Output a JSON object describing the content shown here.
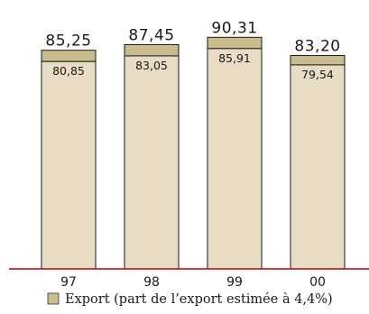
{
  "chart_data": {
    "type": "bar",
    "categories": [
      "97",
      "98",
      "99",
      "00"
    ],
    "series": [
      {
        "name": "",
        "values": [
          85.25,
          87.45,
          90.31,
          83.2
        ],
        "labels": [
          "85,25",
          "87,45",
          "90,31",
          "83,20"
        ],
        "color": "#c9bc8e"
      },
      {
        "name": "",
        "values": [
          80.85,
          83.05,
          85.91,
          79.54
        ],
        "labels": [
          "80,85",
          "83,05",
          "85,91",
          "79,54"
        ],
        "color": "#e8dcc4"
      }
    ],
    "legend": {
      "label": "Export (part de l’export estimée à 4,4%)",
      "color": "#c9bc8e",
      "placement": "bottom"
    },
    "title": "",
    "xlabel": "",
    "ylabel": "",
    "ylim": [
      0,
      95
    ],
    "baseline_color": "#c00000",
    "grid": false
  }
}
